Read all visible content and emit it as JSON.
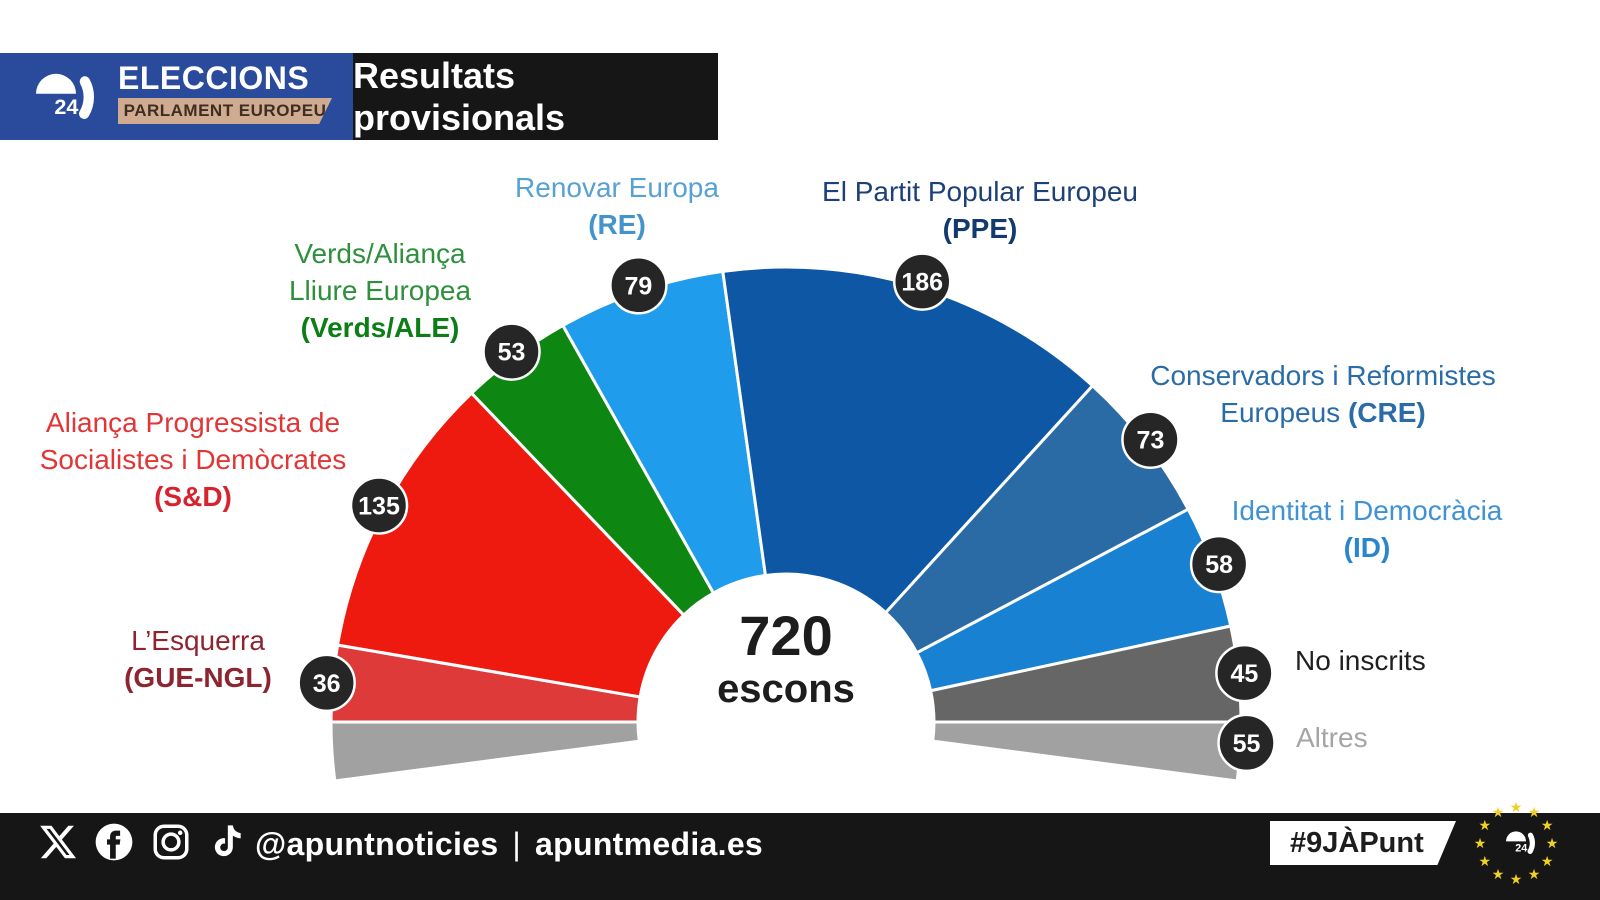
{
  "header": {
    "brand": {
      "logo_text": "24",
      "title": "ELECCIONS",
      "subtitle": "PARLAMENT EUROPEU"
    },
    "banner": "Resultats provisionals"
  },
  "chart_data": {
    "type": "pie",
    "variant": "hemicycle-half-donut",
    "title": "Resultats provisionals",
    "total_seats": 720,
    "center_label": {
      "value": "720",
      "unit": "escons"
    },
    "layout": {
      "span_deg": 180,
      "others_split_below_baseline": true,
      "grid": false,
      "badge_color": "#262626",
      "badge_text_color": "#ffffff",
      "separator_color": "#ffffff"
    },
    "segments": [
      {
        "id": "gue-ngl",
        "name": "L’Esquerra",
        "group": "GUE-NGL",
        "seats": 36,
        "color": "#de3a3a",
        "label_color": "#8e2430",
        "label_lines": [
          [
            {
              "t": "L’Esquerra"
            }
          ],
          [
            {
              "t": "(GUE-NGL)",
              "b": true
            }
          ]
        ]
      },
      {
        "id": "sd",
        "name": "Aliança Progressista de Socialistes i Demòcrates",
        "group": "S&D",
        "seats": 135,
        "color": "#ee1a10",
        "label_color": "#e23535",
        "label_bold_color": "#d8232f",
        "label_lines": [
          [
            {
              "t": "Aliança Progressista de"
            }
          ],
          [
            {
              "t": "Socialistes i Demòcrates"
            }
          ],
          [
            {
              "t": "(S&D)",
              "b": true
            }
          ]
        ]
      },
      {
        "id": "verds-ale",
        "name": "Verds/Aliança Lliure Europea",
        "group": "Verds/ALE",
        "seats": 53,
        "color": "#0e8712",
        "label_color": "#2e8f3c",
        "label_bold_color": "#0d7d15",
        "label_lines": [
          [
            {
              "t": "Verds/Aliança"
            }
          ],
          [
            {
              "t": "Lliure Europea"
            }
          ],
          [
            {
              "t": "(Verds/ALE)",
              "b": true
            }
          ]
        ]
      },
      {
        "id": "re",
        "name": "Renovar Europa",
        "group": "RE",
        "seats": 79,
        "color": "#1f9ceb",
        "label_color": "#58a1d3",
        "label_bold_color": "#4493cb",
        "label_lines": [
          [
            {
              "t": "Renovar Europa"
            }
          ],
          [
            {
              "t": "(RE)",
              "b": true
            }
          ]
        ]
      },
      {
        "id": "ppe",
        "name": "El Partit Popular Europeu",
        "group": "PPE",
        "seats": 186,
        "color": "#0d57a5",
        "label_color": "#1c4077",
        "label_bold_color": "#133a6e",
        "label_lines": [
          [
            {
              "t": "El Partit Popular Europeu"
            }
          ],
          [
            {
              "t": "(PPE)",
              "b": true
            }
          ]
        ]
      },
      {
        "id": "cre",
        "name": "Conservadors i Reformistes Europeus",
        "group": "CRE",
        "seats": 73,
        "color": "#2a6aa5",
        "label_color": "#2a6ca8",
        "label_lines": [
          [
            {
              "t": "Conservadors i Reformistes"
            }
          ],
          [
            {
              "t": "Europeus "
            },
            {
              "t": "(CRE)",
              "b": true
            }
          ]
        ]
      },
      {
        "id": "id",
        "name": "Identitat i Democràcia",
        "group": "ID",
        "seats": 58,
        "color": "#1981d2",
        "label_color": "#3e92d5",
        "label_bold_color": "#2a85cf",
        "label_lines": [
          [
            {
              "t": "Identitat i Democràcia"
            }
          ],
          [
            {
              "t": "(ID)",
              "b": true
            }
          ]
        ]
      },
      {
        "id": "no-inscrits",
        "name": "No inscrits",
        "group": "",
        "seats": 45,
        "color": "#666666",
        "label_color": "#1f1f1f",
        "label_lines": [
          [
            {
              "t": "No inscrits"
            }
          ]
        ]
      },
      {
        "id": "altres",
        "name": "Altres",
        "group": "",
        "seats": 55,
        "color": "#a1a1a1",
        "label_color": "#a5a5a5",
        "label_lines": [
          [
            {
              "t": "Altres"
            }
          ]
        ]
      }
    ]
  },
  "footer": {
    "icons": [
      "x",
      "facebook",
      "instagram",
      "tiktok"
    ],
    "handle": "@apuntnoticies",
    "separator": "|",
    "site": "apuntmedia.es",
    "hashtag": "#9JÀPunt"
  },
  "colors": {
    "header_blue": "#2a4a9c",
    "header_beige": "#cfab92",
    "bar_black": "#161616",
    "badge": "#262626",
    "eu_star_yellow": "#f0d022"
  }
}
